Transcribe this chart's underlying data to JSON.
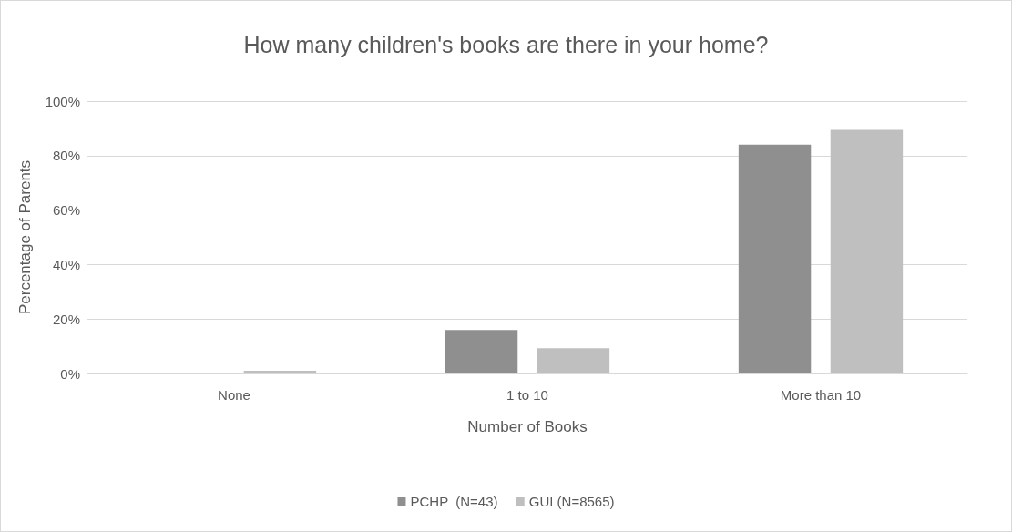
{
  "chart_data": {
    "type": "bar",
    "title": "How many children's books are there in your home?",
    "xlabel": "Number of Books",
    "ylabel": "Percentage of Parents",
    "categories": [
      "None",
      "1 to 10",
      "More than 10"
    ],
    "series": [
      {
        "name": "PCHP  (N=43)",
        "color": "#8f8f8f",
        "values": [
          0,
          16,
          84
        ]
      },
      {
        "name": "GUI (N=8565)",
        "color": "#bfbfbf",
        "values": [
          1,
          9.3,
          89.5
        ]
      }
    ],
    "ylim": [
      0,
      100
    ],
    "yticks": [
      {
        "value": 0,
        "label": "0%"
      },
      {
        "value": 20,
        "label": "20%"
      },
      {
        "value": 40,
        "label": "40%"
      },
      {
        "value": 60,
        "label": "60%"
      },
      {
        "value": 80,
        "label": "80%"
      },
      {
        "value": 100,
        "label": "100%"
      }
    ],
    "grid": "y",
    "legend": "bottom"
  }
}
